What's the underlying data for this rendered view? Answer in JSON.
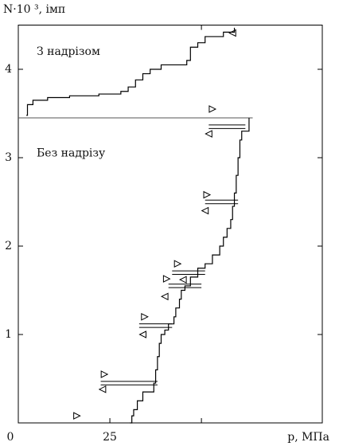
{
  "chart_data": {
    "type": "step",
    "ylabel": "N·10 ³, імп",
    "xlabel": "p, МПа",
    "xlim": [
      0,
      83
    ],
    "xticks": [
      0,
      25
    ],
    "xticks_unlabeled": [
      50
    ],
    "ylim": [
      0,
      4.5
    ],
    "yticks": [
      1,
      2,
      3,
      4
    ],
    "color": "#000000",
    "divider_y": 3.45,
    "divider_x": [
      0,
      64
    ],
    "annotations": [
      {
        "text": "З надрізом",
        "x": 5,
        "y": 4.2
      },
      {
        "text": "Без надрізу",
        "x": 5,
        "y": 3.05
      }
    ],
    "series": [
      {
        "name": "З надрізом",
        "x": [
          2.2,
          2.5,
          4,
          8,
          14,
          22,
          28,
          30,
          32,
          34,
          36,
          39,
          46,
          47,
          49,
          51,
          56,
          59
        ],
        "y": [
          3.48,
          3.6,
          3.65,
          3.68,
          3.7,
          3.72,
          3.75,
          3.8,
          3.88,
          3.95,
          4.0,
          4.05,
          4.1,
          4.25,
          4.3,
          4.37,
          4.42,
          4.47
        ]
      },
      {
        "name": "Без надрізу",
        "x": [
          30.5,
          31,
          31.5,
          32.5,
          34,
          37,
          37.5,
          38,
          38.5,
          39,
          40,
          41,
          42.5,
          43,
          44,
          44.5,
          45.5,
          47,
          49,
          51,
          53,
          55,
          56,
          57,
          58,
          58.5,
          59,
          59.5,
          60,
          60.5,
          61,
          63
        ],
        "y": [
          0,
          0.08,
          0.15,
          0.25,
          0.35,
          0.45,
          0.6,
          0.75,
          0.9,
          1.0,
          1.05,
          1.12,
          1.2,
          1.3,
          1.4,
          1.5,
          1.55,
          1.65,
          1.75,
          1.8,
          1.9,
          2.0,
          2.1,
          2.2,
          2.3,
          2.45,
          2.6,
          2.8,
          3.0,
          3.2,
          3.3,
          3.45
        ]
      }
    ],
    "levels": [
      [
        0.43,
        22.5,
        38
      ],
      [
        0.47,
        22.5,
        38
      ],
      [
        1.08,
        33,
        42
      ],
      [
        1.12,
        33,
        42
      ],
      [
        1.53,
        41,
        50
      ],
      [
        1.57,
        41,
        50
      ],
      [
        1.68,
        42,
        51
      ],
      [
        1.72,
        42,
        51
      ],
      [
        2.48,
        51,
        60
      ],
      [
        2.52,
        51,
        60
      ],
      [
        3.33,
        52,
        62
      ],
      [
        3.37,
        52,
        62
      ]
    ],
    "right_markers": {
      "x": [
        16,
        23.5,
        34.5,
        43.5,
        40.5,
        51.5,
        53
      ],
      "y": [
        0.08,
        0.55,
        1.2,
        1.8,
        1.63,
        2.58,
        3.55
      ]
    },
    "left_markers": {
      "x": [
        23,
        34,
        45,
        40,
        51,
        52,
        58.5
      ],
      "y": [
        0.38,
        1.0,
        1.62,
        1.43,
        2.4,
        3.27,
        4.41
      ]
    }
  }
}
